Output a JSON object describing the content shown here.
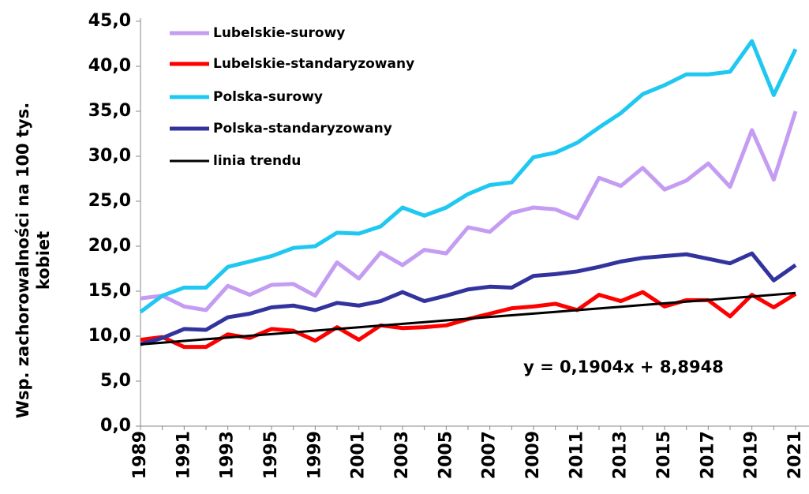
{
  "chart_data": {
    "type": "line",
    "y_label": [
      "Wsp. zachorowalności na 100 tys.",
      "kobiet"
    ],
    "annotation": "y = 0,1904x + 8,8948",
    "categories": [
      "1989",
      null,
      "1991",
      null,
      "1993",
      null,
      "1995",
      null,
      "1999",
      null,
      "2001",
      null,
      "2003",
      null,
      "2005",
      null,
      "2007",
      null,
      "2009",
      null,
      "2011",
      null,
      "2013",
      null,
      "2015",
      null,
      "2017",
      null,
      "2019",
      null,
      "2021"
    ],
    "series": [
      {
        "name": "Lubelskie-surowy",
        "color": "#c49cf2",
        "values": [
          14.2,
          14.5,
          13.3,
          12.9,
          15.6,
          14.6,
          15.7,
          15.8,
          14.5,
          18.2,
          16.4,
          19.3,
          17.9,
          19.6,
          19.2,
          22.1,
          21.6,
          23.7,
          24.3,
          24.1,
          23.1,
          27.6,
          26.7,
          28.7,
          26.3,
          27.3,
          29.2,
          26.6,
          32.9,
          27.4,
          35.0
        ]
      },
      {
        "name": "Lubelskie-standaryzowany",
        "color": "#ff0000",
        "values": [
          9.6,
          9.9,
          8.8,
          8.8,
          10.2,
          9.8,
          10.8,
          10.6,
          9.5,
          11.0,
          9.6,
          11.2,
          10.9,
          11.0,
          11.2,
          11.9,
          12.5,
          13.1,
          13.3,
          13.6,
          12.9,
          14.6,
          13.9,
          14.9,
          13.3,
          14.0,
          14.0,
          12.2,
          14.6,
          13.2,
          14.7
        ]
      },
      {
        "name": "Polska-surowy",
        "color": "#1ec8f0",
        "values": [
          12.7,
          14.5,
          15.4,
          15.4,
          17.7,
          18.3,
          18.9,
          19.8,
          20.0,
          21.5,
          21.4,
          22.2,
          24.3,
          23.4,
          24.3,
          25.8,
          26.8,
          27.1,
          29.9,
          30.4,
          31.5,
          33.2,
          34.8,
          36.9,
          37.9,
          39.1,
          39.1,
          39.4,
          42.8,
          36.8,
          41.9
        ]
      },
      {
        "name": "Polska-standaryzowany",
        "color": "#33339e",
        "values": [
          9.1,
          9.8,
          10.8,
          10.7,
          12.1,
          12.5,
          13.2,
          13.4,
          12.9,
          13.7,
          13.4,
          13.9,
          14.9,
          13.9,
          14.5,
          15.2,
          15.5,
          15.4,
          16.7,
          16.9,
          17.2,
          17.7,
          18.3,
          18.7,
          18.9,
          19.1,
          18.6,
          18.1,
          19.2,
          16.2,
          17.9
        ]
      },
      {
        "name": "linia trendu",
        "color": "#000000",
        "values": [
          9.09,
          9.28,
          9.47,
          9.66,
          9.85,
          10.04,
          10.23,
          10.42,
          10.61,
          10.8,
          10.99,
          11.18,
          11.37,
          11.56,
          11.75,
          11.94,
          12.14,
          12.32,
          12.51,
          12.7,
          12.89,
          13.08,
          13.27,
          13.46,
          13.65,
          13.84,
          14.03,
          14.22,
          14.41,
          14.6,
          14.8
        ]
      }
    ],
    "ylim": [
      0,
      45
    ],
    "yticks": [
      {
        "value": 0,
        "label": "0,0"
      },
      {
        "value": 5,
        "label": "5,0"
      },
      {
        "value": 10,
        "label": "10,0"
      },
      {
        "value": 15,
        "label": "15,0"
      },
      {
        "value": 20,
        "label": "20,0"
      },
      {
        "value": 25,
        "label": "25,0"
      },
      {
        "value": 30,
        "label": "30,0"
      },
      {
        "value": 35,
        "label": "35,0"
      },
      {
        "value": 40,
        "label": "40,0"
      },
      {
        "value": 45,
        "label": "45,0"
      }
    ],
    "legend": "upper left",
    "grid": false
  }
}
